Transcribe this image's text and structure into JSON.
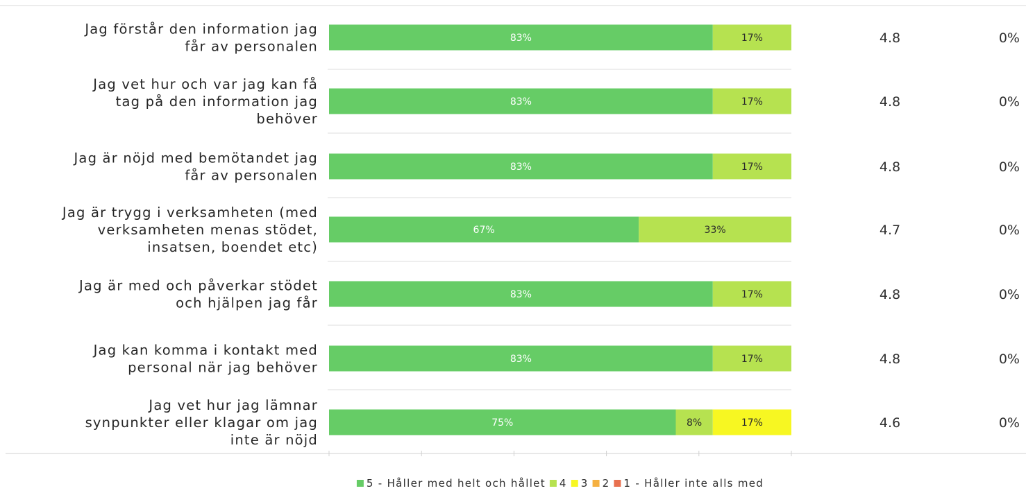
{
  "chart_data": {
    "type": "bar",
    "orientation": "horizontal",
    "stacked": true,
    "categories": [
      "Jag förstår den information jag får av personalen",
      "Jag vet hur och var jag kan få tag på den information jag behöver",
      "Jag är nöjd med bemötandet jag får av personalen",
      "Jag är trygg i verksamheten (med verksamheten menas stödet, insatsen, boendet etc)",
      "Jag är med och påverkar stödet och hjälpen jag får",
      "Jag kan komma i kontakt med personal när jag behöver",
      "Jag vet hur jag lämnar synpunkter eller klagar om jag inte är nöjd"
    ],
    "category_lines": [
      [
        "Jag förstår den information jag",
        "får av personalen"
      ],
      [
        "Jag vet hur och var jag kan få",
        "tag på den information jag",
        "behöver"
      ],
      [
        "Jag är nöjd med bemötandet jag",
        "får av personalen"
      ],
      [
        "Jag är trygg i verksamheten (med",
        "verksamheten menas stödet,",
        "insatsen, boendet etc)"
      ],
      [
        "Jag är med och påverkar stödet",
        "och hjälpen jag får"
      ],
      [
        "Jag kan komma i kontakt med",
        "personal när jag behöver"
      ],
      [
        "Jag vet hur jag lämnar",
        "synpunkter eller klagar om jag",
        "inte är nöjd"
      ]
    ],
    "series": [
      {
        "name": "5 - Håller med helt och hållet",
        "color": "#66cc66",
        "label_color": "#ffffff",
        "values": [
          83,
          83,
          83,
          67,
          83,
          83,
          75
        ]
      },
      {
        "name": "4",
        "color": "#b6e250",
        "label_color": "#2b2b2b",
        "values": [
          17,
          17,
          17,
          33,
          17,
          17,
          8
        ]
      },
      {
        "name": "3",
        "color": "#f7f722",
        "label_color": "#2b2b2b",
        "values": [
          0,
          0,
          0,
          0,
          0,
          0,
          17
        ]
      },
      {
        "name": "2",
        "color": "#f5b041",
        "label_color": "#2b2b2b",
        "values": [
          0,
          0,
          0,
          0,
          0,
          0,
          0
        ]
      },
      {
        "name": "1 - Håller inte alls med",
        "color": "#e8704f",
        "label_color": "#2b2b2b",
        "values": [
          0,
          0,
          0,
          0,
          0,
          0,
          0
        ]
      }
    ],
    "xlim": [
      0,
      100
    ],
    "averages": [
      "4.8",
      "4.8",
      "4.8",
      "4.7",
      "4.8",
      "4.8",
      "4.6"
    ],
    "no_answer": [
      "0%",
      "0%",
      "0%",
      "0%",
      "0%",
      "0%",
      "0%"
    ],
    "legend_position": "bottom",
    "grid": false
  }
}
